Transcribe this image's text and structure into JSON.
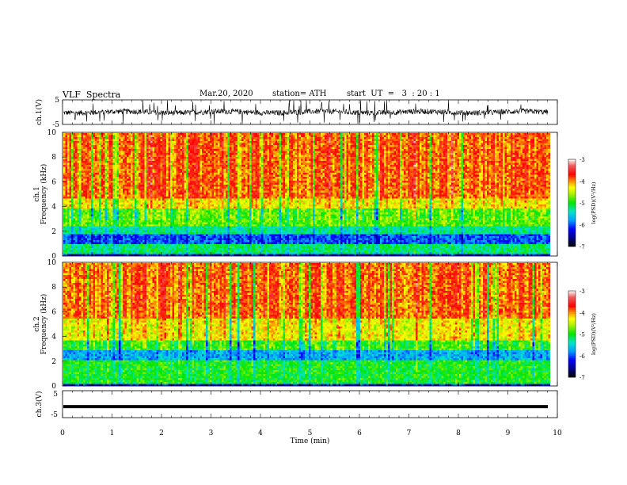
{
  "header": {
    "title": "VLF  Spectra",
    "date": "Mar.20, 2020",
    "station": "station= ATH",
    "start": "start  UT  =   3  : 20 : 1"
  },
  "chart_data": [
    {
      "type": "line",
      "panel": "ch1-waveform",
      "ylabel": "ch.1(V)",
      "ylim": [
        -5,
        5
      ],
      "yticks": [
        "5",
        "-5"
      ],
      "xlim": [
        0,
        10
      ],
      "color": "#000000"
    },
    {
      "type": "heatmap",
      "panel": "ch1-spectrogram",
      "ylabel": "ch.1\nFrequency  (kHz)",
      "ylim": [
        0,
        10
      ],
      "yticks": [
        "10",
        "8",
        "6",
        "4",
        "2",
        "0"
      ],
      "xlim": [
        0,
        9.8
      ],
      "colorbar": {
        "label": "log(PSD)(V²/Hz)",
        "range": [
          -7,
          -3
        ],
        "ticks": [
          "-3",
          "-4",
          "-5",
          "-6",
          "-7"
        ]
      },
      "bands_khz": [
        {
          "from": 0.0,
          "to": 0.3,
          "level": -6.2
        },
        {
          "from": 0.3,
          "to": 1.0,
          "level": -5.2
        },
        {
          "from": 1.0,
          "to": 1.9,
          "level": -6.0
        },
        {
          "from": 1.9,
          "to": 2.5,
          "level": -5.3
        },
        {
          "from": 2.5,
          "to": 3.9,
          "level": -4.8
        },
        {
          "from": 3.9,
          "to": 4.8,
          "level": -4.3
        },
        {
          "from": 4.8,
          "to": 10.0,
          "level": -3.9
        }
      ]
    },
    {
      "type": "heatmap",
      "panel": "ch2-spectrogram",
      "ylabel": "ch.2\nFrequency  (kHz)",
      "ylim": [
        0,
        10
      ],
      "yticks": [
        "10",
        "8",
        "6",
        "4",
        "2",
        "0"
      ],
      "xlim": [
        0,
        9.8
      ],
      "colorbar": {
        "label": "log(PSD)(V²/Hz)",
        "range": [
          -7,
          -3
        ],
        "ticks": [
          "-3",
          "-4",
          "-5",
          "-6",
          "-7"
        ]
      },
      "bands_khz": [
        {
          "from": 0.0,
          "to": 0.3,
          "level": -6.2
        },
        {
          "from": 0.3,
          "to": 2.1,
          "level": -5.0
        },
        {
          "from": 2.1,
          "to": 3.0,
          "level": -5.7
        },
        {
          "from": 3.0,
          "to": 3.8,
          "level": -4.9
        },
        {
          "from": 3.8,
          "to": 5.5,
          "level": -4.3
        },
        {
          "from": 5.5,
          "to": 10.0,
          "level": -3.9
        }
      ]
    },
    {
      "type": "line",
      "panel": "ch3-waveform",
      "ylabel": "ch.3(V)",
      "ylim": [
        -5,
        5
      ],
      "yticks": [
        "5",
        "-5"
      ],
      "xlim": [
        0,
        10
      ],
      "constant_value": -1.2,
      "xlabel": "Time  (min)",
      "xticks": [
        "0",
        "1",
        "2",
        "3",
        "4",
        "5",
        "6",
        "7",
        "8",
        "9",
        "10"
      ]
    }
  ]
}
